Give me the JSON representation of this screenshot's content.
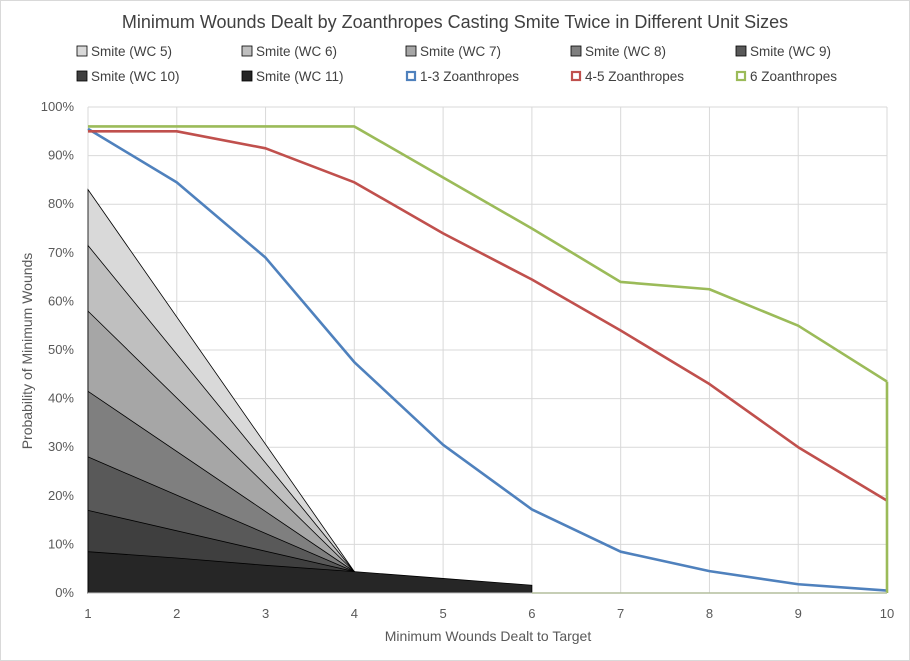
{
  "chart_data": {
    "type": "area",
    "title": "Minimum Wounds Dealt by Zoanthropes Casting Smite Twice in Different Unit Sizes",
    "xlabel": "Minimum Wounds Dealt to Target",
    "ylabel": "Probability of Minimum Wounds",
    "x": [
      1,
      2,
      3,
      4,
      5,
      6,
      7,
      8,
      9,
      10
    ],
    "xlim": [
      1,
      10
    ],
    "ylim": [
      0,
      1
    ],
    "y_format": "percent",
    "y_ticks": [
      0,
      0.1,
      0.2,
      0.3,
      0.4,
      0.5,
      0.6,
      0.7,
      0.8,
      0.9,
      1.0
    ],
    "grid": true,
    "legend_position": "top",
    "area_series": [
      {
        "name": "Smite (WC 5)",
        "color": "#d9d9d9",
        "x": [
          1,
          4
        ],
        "values": [
          0.83,
          0.044
        ]
      },
      {
        "name": "Smite (WC 6)",
        "color": "#bfbfbf",
        "x": [
          1,
          4
        ],
        "values": [
          0.715,
          0.044
        ]
      },
      {
        "name": "Smite (WC 7)",
        "color": "#a6a6a6",
        "x": [
          1,
          4
        ],
        "values": [
          0.58,
          0.044
        ]
      },
      {
        "name": "Smite (WC 8)",
        "color": "#7f7f7f",
        "x": [
          1,
          4
        ],
        "values": [
          0.415,
          0.044
        ]
      },
      {
        "name": "Smite (WC 9)",
        "color": "#595959",
        "x": [
          1,
          4
        ],
        "values": [
          0.28,
          0.044
        ]
      },
      {
        "name": "Smite (WC 10)",
        "color": "#3f3f3f",
        "x": [
          1,
          4
        ],
        "values": [
          0.17,
          0.044
        ]
      },
      {
        "name": "Smite (WC 11)",
        "color": "#262626",
        "x": [
          1,
          2,
          3,
          4,
          5,
          6
        ],
        "values": [
          0.085,
          0.072,
          0.057,
          0.044,
          0.03,
          0.016
        ]
      }
    ],
    "line_series": [
      {
        "name": "1-3 Zoanthropes",
        "color": "#4f81bd",
        "values": [
          0.955,
          0.845,
          0.69,
          0.475,
          0.305,
          0.172,
          0.085,
          0.045,
          0.018,
          0.005
        ]
      },
      {
        "name": "4-5 Zoanthropes",
        "color": "#c0504d",
        "values": [
          0.95,
          0.95,
          0.915,
          0.845,
          0.74,
          0.645,
          0.54,
          0.43,
          0.3,
          0.19
        ]
      },
      {
        "name": "6 Zoanthropes",
        "color": "#9bbb59",
        "values": [
          0.96,
          0.96,
          0.96,
          0.96,
          0.855,
          0.75,
          0.64,
          0.625,
          0.55,
          0.435
        ]
      }
    ]
  }
}
